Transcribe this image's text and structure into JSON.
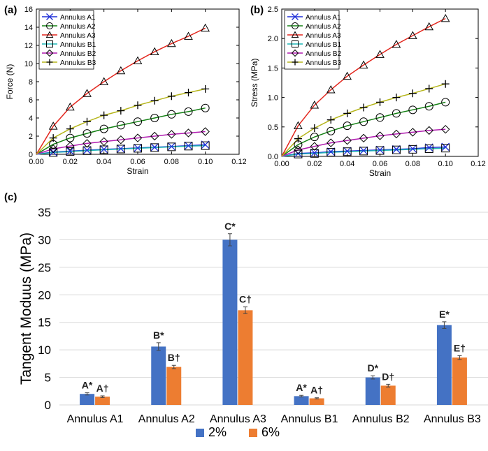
{
  "panel_labels": {
    "a": "(a)",
    "b": "(b)",
    "c": "(c)"
  },
  "chart_data": [
    {
      "id": "a",
      "type": "line",
      "title": "",
      "xlabel": "Strain",
      "ylabel": "Force (N)",
      "xlim": [
        0.0,
        0.12
      ],
      "ylim": [
        0,
        16
      ],
      "xticks": [
        "0.00",
        "0.02",
        "0.04",
        "0.06",
        "0.08",
        "0.10",
        "0.12"
      ],
      "yticks": [
        "0",
        "2",
        "4",
        "6",
        "8",
        "10",
        "12",
        "14",
        "16"
      ],
      "legend_position": "top-left",
      "x": [
        0.0,
        0.01,
        0.02,
        0.03,
        0.04,
        0.05,
        0.06,
        0.07,
        0.08,
        0.09,
        0.1
      ],
      "series": [
        {
          "name": "Annulus A1",
          "color": "#1f2fd8",
          "marker": "x",
          "values": [
            0,
            0.25,
            0.35,
            0.45,
            0.55,
            0.62,
            0.7,
            0.78,
            0.86,
            0.95,
            1.05
          ]
        },
        {
          "name": "Annulus A2",
          "color": "#138013",
          "marker": "circle",
          "values": [
            0,
            1.1,
            1.8,
            2.3,
            2.8,
            3.2,
            3.6,
            4.0,
            4.4,
            4.7,
            5.1
          ]
        },
        {
          "name": "Annulus A3",
          "color": "#e3261d",
          "marker": "triangle",
          "values": [
            0,
            3.1,
            5.2,
            6.7,
            8.0,
            9.2,
            10.3,
            11.3,
            12.2,
            13.0,
            13.9
          ]
        },
        {
          "name": "Annulus B1",
          "color": "#1fb5b5",
          "marker": "square",
          "values": [
            0,
            0.2,
            0.3,
            0.4,
            0.5,
            0.58,
            0.66,
            0.74,
            0.82,
            0.9,
            0.95
          ]
        },
        {
          "name": "Annulus B2",
          "color": "#b01cb0",
          "marker": "diamond",
          "values": [
            0,
            0.6,
            0.9,
            1.2,
            1.4,
            1.6,
            1.8,
            2.0,
            2.2,
            2.35,
            2.5
          ]
        },
        {
          "name": "Annulus B3",
          "color": "#b5b51a",
          "marker": "plus",
          "values": [
            0,
            1.8,
            2.8,
            3.6,
            4.3,
            4.8,
            5.4,
            5.9,
            6.4,
            6.8,
            7.2
          ]
        }
      ]
    },
    {
      "id": "b",
      "type": "line",
      "title": "",
      "xlabel": "Strain",
      "ylabel": "Stress (MPa)",
      "xlim": [
        0.0,
        0.12
      ],
      "ylim": [
        0.0,
        2.5
      ],
      "xticks": [
        "0.00",
        "0.02",
        "0.04",
        "0.06",
        "0.08",
        "0.10",
        "0.12"
      ],
      "yticks": [
        "0.0",
        "0.5",
        "1.0",
        "1.5",
        "2.0",
        "2.5"
      ],
      "legend_position": "top-left",
      "x": [
        0.0,
        0.01,
        0.02,
        0.03,
        0.04,
        0.05,
        0.06,
        0.07,
        0.08,
        0.09,
        0.1
      ],
      "series": [
        {
          "name": "Annulus A1",
          "color": "#1f2fd8",
          "marker": "x",
          "values": [
            0,
            0.05,
            0.06,
            0.08,
            0.09,
            0.1,
            0.11,
            0.12,
            0.13,
            0.15,
            0.16
          ]
        },
        {
          "name": "Annulus A2",
          "color": "#138013",
          "marker": "circle",
          "values": [
            0,
            0.2,
            0.33,
            0.43,
            0.52,
            0.59,
            0.66,
            0.73,
            0.79,
            0.85,
            0.92
          ]
        },
        {
          "name": "Annulus A3",
          "color": "#e3261d",
          "marker": "triangle",
          "values": [
            0,
            0.52,
            0.87,
            1.13,
            1.36,
            1.55,
            1.73,
            1.9,
            2.05,
            2.2,
            2.34
          ]
        },
        {
          "name": "Annulus B1",
          "color": "#1fb5b5",
          "marker": "square",
          "values": [
            0,
            0.04,
            0.05,
            0.07,
            0.08,
            0.09,
            0.1,
            0.11,
            0.12,
            0.13,
            0.14
          ]
        },
        {
          "name": "Annulus B2",
          "color": "#b01cb0",
          "marker": "diamond",
          "values": [
            0,
            0.11,
            0.17,
            0.23,
            0.27,
            0.31,
            0.35,
            0.38,
            0.41,
            0.44,
            0.46
          ]
        },
        {
          "name": "Annulus B3",
          "color": "#b5b51a",
          "marker": "plus",
          "values": [
            0,
            0.3,
            0.48,
            0.62,
            0.73,
            0.83,
            0.92,
            1.0,
            1.07,
            1.15,
            1.23
          ]
        }
      ]
    },
    {
      "id": "c",
      "type": "bar",
      "title": "",
      "xlabel": "",
      "ylabel": "Tangent Moduus (MPa)",
      "ylim": [
        0,
        35
      ],
      "yticks": [
        "0",
        "5",
        "10",
        "15",
        "20",
        "25",
        "30",
        "35"
      ],
      "categories": [
        "Annulus A1",
        "Annulus A2",
        "Annulus A3",
        "Annulus B1",
        "Annulus B2",
        "Annulus B3"
      ],
      "legend_position": "bottom-center",
      "series": [
        {
          "name": "2%",
          "color": "#4472c4",
          "values": [
            2.0,
            10.6,
            30.0,
            1.6,
            5.0,
            14.5
          ],
          "errors": [
            0.2,
            0.7,
            1.1,
            0.15,
            0.3,
            0.6
          ],
          "labels": [
            "A*",
            "B*",
            "C*",
            "A*",
            "D*",
            "E*"
          ]
        },
        {
          "name": "6%",
          "color": "#ed7d31",
          "values": [
            1.5,
            6.9,
            17.2,
            1.2,
            3.5,
            8.6
          ],
          "errors": [
            0.15,
            0.3,
            0.6,
            0.1,
            0.25,
            0.35
          ],
          "labels": [
            "A†",
            "B†",
            "C†",
            "A†",
            "D†",
            "E†"
          ]
        }
      ]
    }
  ]
}
